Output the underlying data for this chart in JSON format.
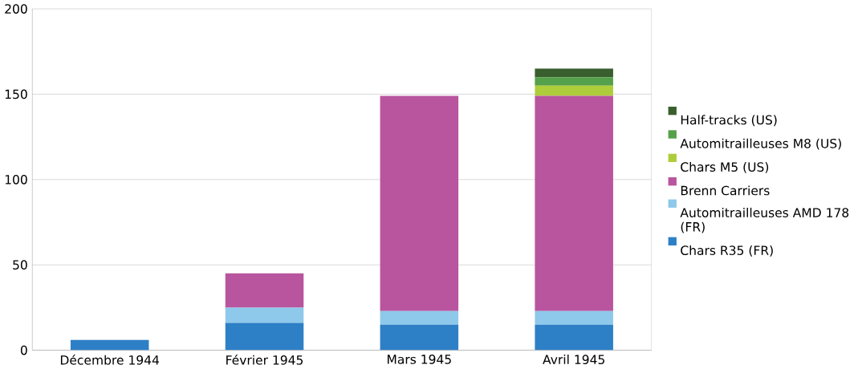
{
  "chart_data": {
    "type": "bar",
    "stacked": true,
    "categories": [
      "Décembre 1944",
      "Février 1945",
      "Mars 1945",
      "Avril 1945"
    ],
    "series": [
      {
        "name": "Chars R35 (FR)",
        "color": "#2e80c6",
        "values": [
          6,
          16,
          15,
          15
        ]
      },
      {
        "name": "Automitrailleuses AMD 178 (FR)",
        "color": "#8ec8ea",
        "values": [
          0,
          9,
          8,
          8
        ]
      },
      {
        "name": "Brenn Carriers",
        "color": "#b8559e",
        "values": [
          0,
          20,
          126,
          126
        ]
      },
      {
        "name": "Chars M5 (US)",
        "color": "#aecd3a",
        "values": [
          0,
          0,
          0,
          6
        ]
      },
      {
        "name": "Automitrailleuses M8 (US)",
        "color": "#55a04a",
        "values": [
          0,
          0,
          0,
          5
        ]
      },
      {
        "name": "Half-tracks (US)",
        "color": "#3a5f2e",
        "values": [
          0,
          0,
          0,
          5
        ]
      }
    ],
    "ylim": [
      0,
      200
    ],
    "yticks": [
      0,
      50,
      100,
      150,
      200
    ],
    "grid": "y",
    "legend": "right"
  }
}
